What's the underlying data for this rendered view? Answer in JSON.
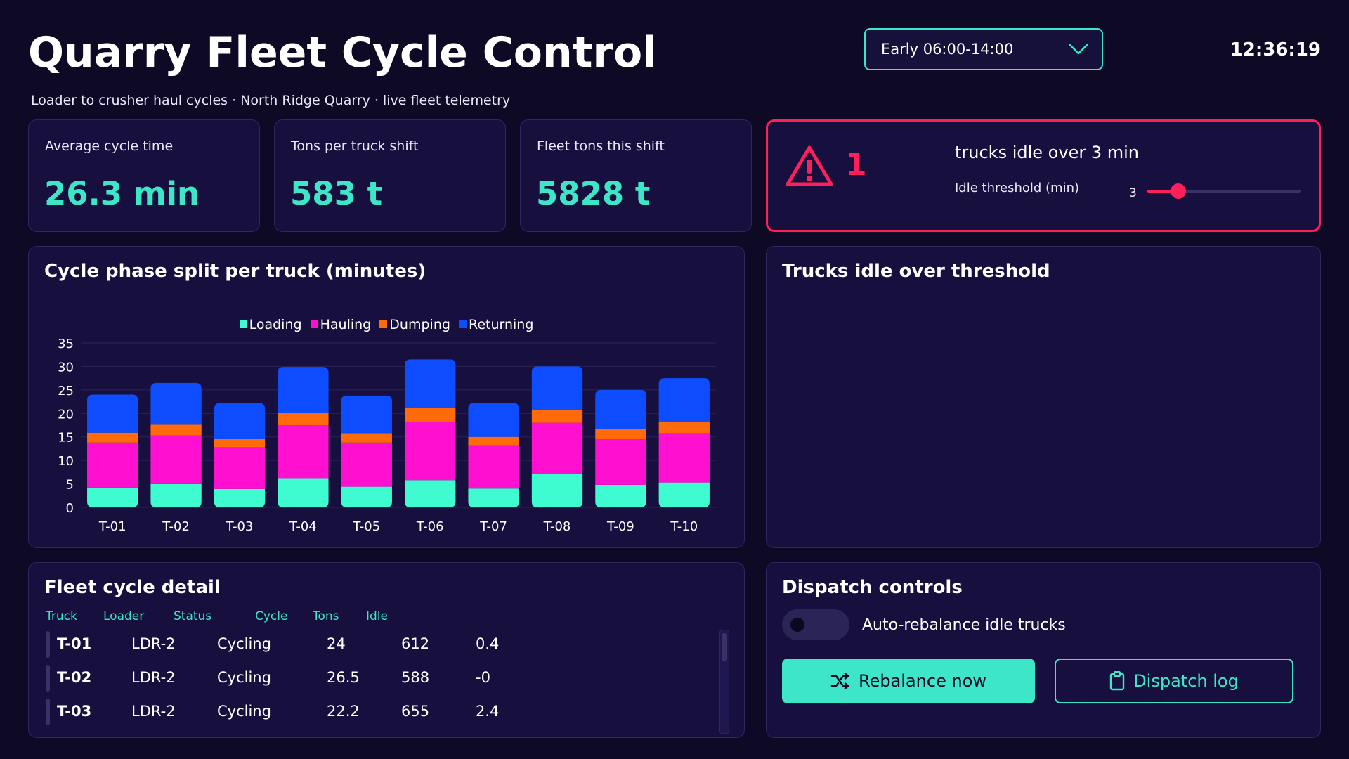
{
  "header": {
    "title": "Quarry Fleet Cycle Control",
    "subtitle": "Loader to crusher haul cycles · North Ridge Quarry · live fleet telemetry",
    "shift_selected": "Early 06:00-14:00",
    "clock": "12:36:19"
  },
  "kpis": [
    {
      "label": "Average cycle time",
      "value": "26.3 min"
    },
    {
      "label": "Tons per truck shift",
      "value": "583 t"
    },
    {
      "label": "Fleet tons this shift",
      "value": "5828 t"
    }
  ],
  "alert": {
    "count": "1",
    "title": "trucks idle over 3 min",
    "threshold_label": "Idle threshold (min)",
    "threshold_value": "3",
    "threshold_fraction": 0.2
  },
  "colors": {
    "accent": "#3ee6c8",
    "alert": "#ff1f5a",
    "loading": "#3ffbd0",
    "hauling": "#ff10d0",
    "dumping": "#ff6b0a",
    "returning": "#0d4dff"
  },
  "chart_panel": {
    "title": "Cycle phase split per truck (minutes)"
  },
  "chart_data": {
    "type": "bar",
    "stacked": true,
    "categories": [
      "T-01",
      "T-02",
      "T-03",
      "T-04",
      "T-05",
      "T-06",
      "T-07",
      "T-08",
      "T-09",
      "T-10"
    ],
    "series": [
      {
        "name": "Loading",
        "color": "#3ffbd0",
        "values": [
          4.2,
          5.1,
          3.9,
          6.2,
          4.4,
          5.8,
          4.0,
          7.1,
          4.8,
          5.3
        ]
      },
      {
        "name": "Hauling",
        "color": "#ff10d0",
        "values": [
          9.6,
          10.2,
          8.9,
          11.3,
          9.4,
          12.4,
          9.2,
          10.9,
          9.7,
          10.5
        ]
      },
      {
        "name": "Dumping",
        "color": "#ff6b0a",
        "values": [
          2.1,
          2.3,
          1.8,
          2.6,
          2.0,
          3.0,
          1.8,
          2.7,
          2.2,
          2.4
        ]
      },
      {
        "name": "Returning",
        "color": "#0d4dff",
        "values": [
          8.1,
          8.9,
          7.6,
          9.8,
          8.0,
          10.3,
          7.2,
          9.3,
          8.3,
          9.3
        ]
      }
    ],
    "ylim": [
      0,
      35
    ],
    "yticks": [
      0,
      5,
      10,
      15,
      20,
      25,
      30,
      35
    ],
    "grid": true,
    "legend": "top-center"
  },
  "idle_panel": {
    "title": "Trucks idle over threshold"
  },
  "table": {
    "title": "Fleet cycle detail",
    "columns": [
      "Truck",
      "Loader",
      "Status",
      "Cycle",
      "Tons",
      "Idle"
    ],
    "rows": [
      {
        "truck": "T-01",
        "loader": "LDR-2",
        "status": "Cycling",
        "cycle": "24",
        "tons": "612",
        "idle": "0.4"
      },
      {
        "truck": "T-02",
        "loader": "LDR-2",
        "status": "Cycling",
        "cycle": "26.5",
        "tons": "588",
        "idle": "-0"
      },
      {
        "truck": "T-03",
        "loader": "LDR-2",
        "status": "Cycling",
        "cycle": "22.2",
        "tons": "655",
        "idle": "2.4"
      }
    ]
  },
  "dispatch": {
    "title": "Dispatch controls",
    "toggle_label": "Auto-rebalance idle trucks",
    "rebalance_label": "Rebalance now",
    "log_label": "Dispatch log"
  }
}
